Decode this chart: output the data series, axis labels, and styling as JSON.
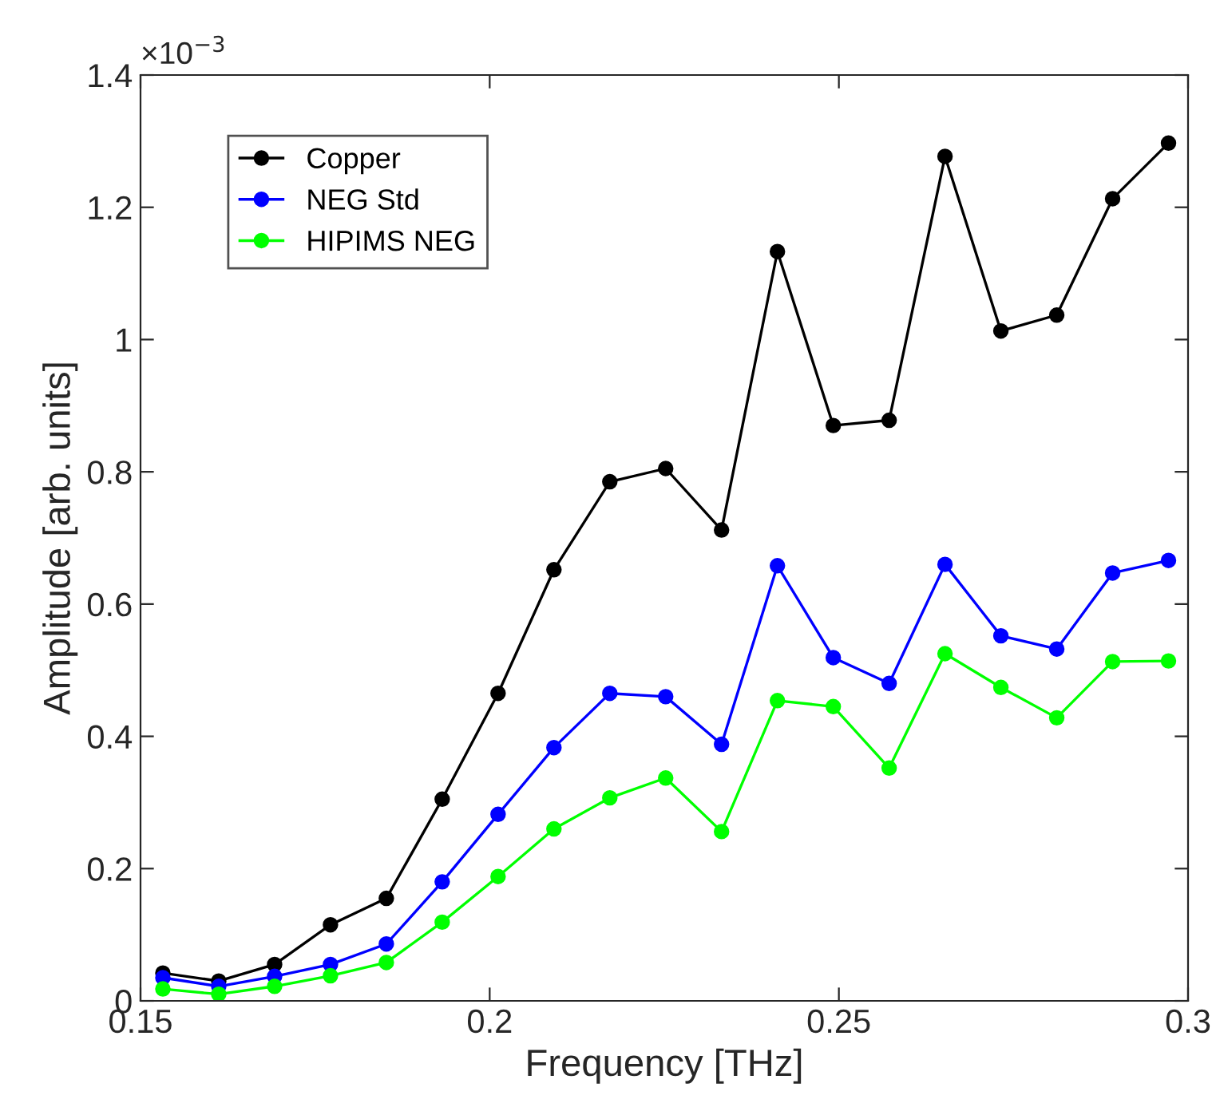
{
  "chart_data": {
    "type": "line",
    "xlabel": "Frequency [THz]",
    "ylabel": "Amplitude [arb. units]",
    "annotations": [
      "×10$^{−3}$"
    ],
    "x": [
      0.1532,
      0.1612,
      0.1692,
      0.1772,
      0.1852,
      0.1932,
      0.2012,
      0.2092,
      0.2172,
      0.2252,
      0.2332,
      0.2412,
      0.2492,
      0.2572,
      0.2652,
      0.2732,
      0.2812,
      0.2892,
      0.2972
    ],
    "series": [
      {
        "name": "Copper",
        "color": "#000000",
        "values": [
          0.042,
          0.03,
          0.055,
          0.115,
          0.155,
          0.305,
          0.465,
          0.652,
          0.785,
          0.805,
          0.712,
          1.133,
          0.87,
          0.878,
          1.277,
          1.013,
          1.037,
          1.213,
          1.297
        ]
      },
      {
        "name": "NEG Std",
        "color": "#0000ff",
        "values": [
          0.035,
          0.022,
          0.037,
          0.055,
          0.086,
          0.18,
          0.282,
          0.383,
          0.465,
          0.46,
          0.388,
          0.658,
          0.519,
          0.48,
          0.66,
          0.552,
          0.532,
          0.647,
          0.666
        ]
      },
      {
        "name": "HIPIMS NEG",
        "color": "#00ff00",
        "values": [
          0.018,
          0.01,
          0.022,
          0.038,
          0.058,
          0.119,
          0.188,
          0.26,
          0.307,
          0.337,
          0.256,
          0.454,
          0.445,
          0.352,
          0.525,
          0.474,
          0.428,
          0.513,
          0.514
        ]
      }
    ],
    "xlim": [
      0.15,
      0.3
    ],
    "ylim": [
      0,
      1.4
    ],
    "xticks": [
      0.15,
      0.2,
      0.25,
      0.3
    ],
    "yticks": [
      0,
      0.2,
      0.4,
      0.6,
      0.8,
      1,
      1.2,
      1.4
    ],
    "grid": false,
    "legend": "top left",
    "marker": "circle",
    "line_style": "solid"
  }
}
